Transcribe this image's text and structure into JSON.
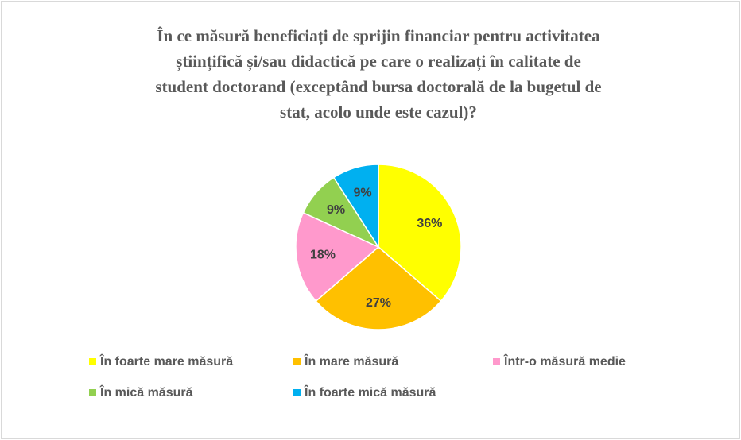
{
  "chart_data": {
    "type": "pie",
    "title": [
      "În ce măsură beneficiați de sprijin financiar pentru activitatea",
      "științifică și/sau didactică pe care o realizați în calitate de",
      "student doctorand (exceptând bursa doctorală de la bugetul de",
      "stat, acolo unde este cazul)?"
    ],
    "categories": [
      "În foarte mare măsură",
      "În mare măsură",
      "Într-o măsură medie",
      "În mică măsură",
      "În foarte mică măsură"
    ],
    "values": [
      36,
      27,
      18,
      9,
      9
    ],
    "value_labels": [
      "36%",
      "27%",
      "18%",
      "9%",
      "9%"
    ],
    "colors": [
      "#ffff00",
      "#ffc000",
      "#ff99cc",
      "#92d050",
      "#00b0f0"
    ],
    "legend": "bottom"
  }
}
